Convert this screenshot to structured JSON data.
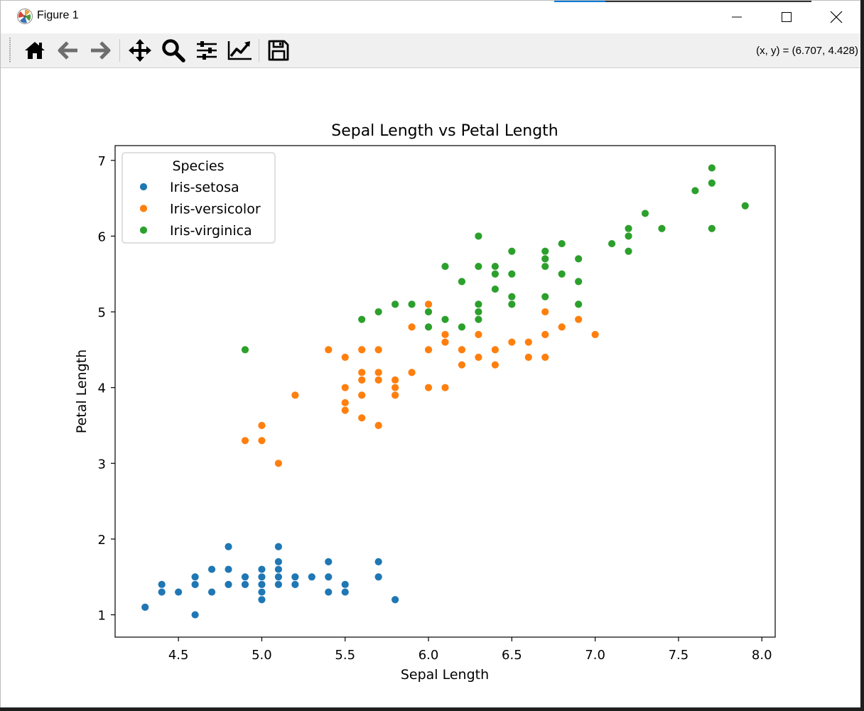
{
  "window": {
    "title": "Figure 1",
    "coord_readout": "(x, y) = (6.707, 4.428)"
  },
  "toolbar": {
    "buttons": [
      {
        "name": "home-icon",
        "label": "Home"
      },
      {
        "name": "back-icon",
        "label": "Back"
      },
      {
        "name": "forward-icon",
        "label": "Forward"
      },
      {
        "name": "pan-icon",
        "label": "Pan"
      },
      {
        "name": "zoom-icon",
        "label": "Zoom"
      },
      {
        "name": "subplots-icon",
        "label": "Configure subplots"
      },
      {
        "name": "edit-axis-icon",
        "label": "Edit axis"
      },
      {
        "name": "save-icon",
        "label": "Save"
      }
    ]
  },
  "chart_data": {
    "type": "scatter",
    "title": "Sepal Length vs Petal Length",
    "xlabel": "Sepal Length",
    "ylabel": "Petal Length",
    "xlim": [
      4.12,
      8.08
    ],
    "ylim": [
      0.705,
      7.195
    ],
    "xticks": [
      "4.5",
      "5.0",
      "5.5",
      "6.0",
      "6.5",
      "7.0",
      "7.5",
      "8.0"
    ],
    "yticks": [
      "1",
      "2",
      "3",
      "4",
      "5",
      "6",
      "7"
    ],
    "grid": false,
    "legend": {
      "title": "Species",
      "placement": "upper-left"
    },
    "series": [
      {
        "name": "Iris-setosa",
        "color": "#1f77b4",
        "x": [
          4.3,
          4.4,
          4.4,
          4.5,
          4.6,
          4.6,
          4.6,
          4.7,
          4.7,
          4.8,
          4.8,
          4.8,
          4.9,
          4.9,
          5.0,
          5.0,
          5.0,
          5.0,
          5.0,
          5.0,
          5.1,
          5.1,
          5.1,
          5.1,
          5.1,
          5.1,
          5.2,
          5.2,
          5.3,
          5.4,
          5.4,
          5.4,
          5.5,
          5.5,
          5.7,
          5.7,
          5.8
        ],
        "y": [
          1.1,
          1.4,
          1.3,
          1.3,
          1.0,
          1.5,
          1.4,
          1.3,
          1.6,
          1.4,
          1.6,
          1.9,
          1.5,
          1.4,
          1.2,
          1.3,
          1.4,
          1.5,
          1.6,
          1.4,
          1.4,
          1.5,
          1.6,
          1.7,
          1.9,
          1.5,
          1.5,
          1.4,
          1.5,
          1.7,
          1.5,
          1.3,
          1.4,
          1.3,
          1.7,
          1.5,
          1.2
        ]
      },
      {
        "name": "Iris-versicolor",
        "color": "#ff7f0e",
        "x": [
          4.9,
          5.0,
          5.0,
          5.1,
          5.2,
          5.4,
          5.5,
          5.5,
          5.5,
          5.5,
          5.6,
          5.6,
          5.6,
          5.6,
          5.6,
          5.7,
          5.7,
          5.7,
          5.7,
          5.8,
          5.8,
          5.8,
          5.9,
          5.9,
          6.0,
          6.0,
          6.0,
          6.1,
          6.1,
          6.1,
          6.2,
          6.2,
          6.3,
          6.3,
          6.4,
          6.4,
          6.5,
          6.6,
          6.6,
          6.7,
          6.7,
          6.7,
          6.8,
          6.9,
          7.0
        ],
        "y": [
          3.3,
          3.5,
          3.3,
          3.0,
          3.9,
          4.5,
          4.4,
          4.0,
          3.8,
          3.7,
          4.5,
          4.2,
          4.1,
          3.9,
          3.6,
          4.5,
          4.2,
          4.1,
          3.5,
          4.1,
          4.0,
          3.9,
          4.8,
          4.2,
          5.1,
          4.5,
          4.0,
          4.7,
          4.6,
          4.0,
          4.5,
          4.3,
          4.7,
          4.4,
          4.5,
          4.3,
          4.6,
          4.6,
          4.4,
          5.0,
          4.7,
          4.4,
          4.8,
          4.9,
          4.7
        ]
      },
      {
        "name": "Iris-virginica",
        "color": "#2ca02c",
        "x": [
          4.9,
          5.6,
          5.7,
          5.8,
          5.9,
          6.0,
          6.0,
          6.1,
          6.1,
          6.2,
          6.2,
          6.3,
          6.3,
          6.3,
          6.3,
          6.3,
          6.4,
          6.4,
          6.4,
          6.4,
          6.5,
          6.5,
          6.5,
          6.5,
          6.7,
          6.7,
          6.7,
          6.7,
          6.7,
          6.8,
          6.8,
          6.9,
          6.9,
          6.9,
          7.1,
          7.2,
          7.2,
          7.2,
          7.3,
          7.4,
          7.6,
          7.7,
          7.7,
          7.7,
          7.9
        ],
        "y": [
          4.5,
          4.9,
          5.0,
          5.1,
          5.1,
          5.0,
          4.8,
          5.6,
          4.9,
          5.4,
          4.8,
          6.0,
          5.6,
          5.1,
          5.0,
          4.9,
          5.6,
          5.5,
          5.3,
          5.5,
          5.8,
          5.5,
          5.2,
          5.1,
          5.8,
          5.7,
          5.6,
          5.2,
          5.7,
          5.9,
          5.5,
          5.7,
          5.4,
          5.1,
          5.9,
          6.1,
          6.0,
          5.8,
          6.3,
          6.1,
          6.6,
          6.9,
          6.7,
          6.1,
          6.4
        ]
      }
    ]
  }
}
